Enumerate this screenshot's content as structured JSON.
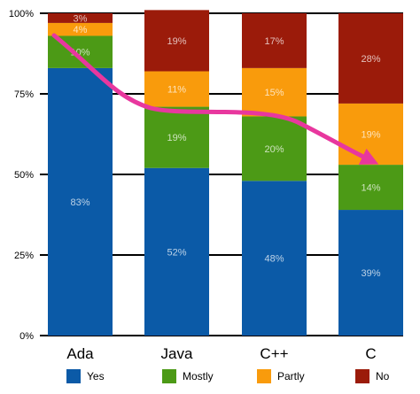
{
  "chart_data": {
    "type": "bar",
    "stacked": true,
    "categories": [
      "Ada",
      "Java",
      "C++",
      "C"
    ],
    "series": [
      {
        "name": "Yes",
        "values": [
          83,
          52,
          48,
          39
        ],
        "color": "#0b5aa7"
      },
      {
        "name": "Mostly",
        "values": [
          10,
          19,
          20,
          14
        ],
        "color": "#4c9a16"
      },
      {
        "name": "Partly",
        "values": [
          4,
          11,
          15,
          19
        ],
        "color": "#f99b0c"
      },
      {
        "name": "No",
        "values": [
          3,
          19,
          17,
          28
        ],
        "color": "#9b1b0a"
      }
    ],
    "y_ticks": [
      "0%",
      "25%",
      "50%",
      "75%",
      "100%"
    ],
    "ylim": [
      0,
      100
    ],
    "grid": true,
    "legend_position": "bottom",
    "annotation": {
      "type": "arrow",
      "color": "#e8379e",
      "description": "curved arrow trending down from Ada to C"
    }
  }
}
